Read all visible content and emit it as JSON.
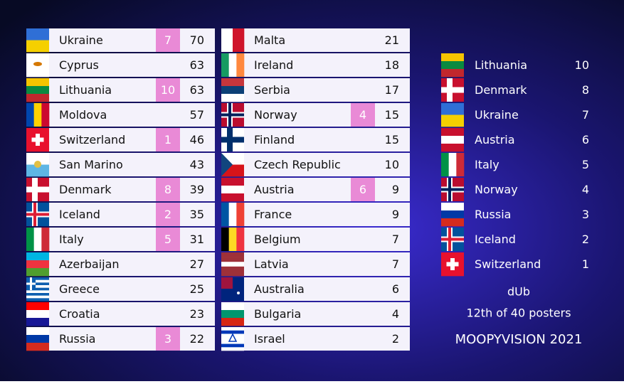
{
  "scoreboard": {
    "columns": [
      [
        {
          "country": "Ukraine",
          "points": 7,
          "total": 70
        },
        {
          "country": "Cyprus",
          "total": 63
        },
        {
          "country": "Lithuania",
          "points": 10,
          "total": 63
        },
        {
          "country": "Moldova",
          "total": 57
        },
        {
          "country": "Switzerland",
          "points": 1,
          "total": 46
        },
        {
          "country": "San Marino",
          "total": 43
        },
        {
          "country": "Denmark",
          "points": 8,
          "total": 39
        },
        {
          "country": "Iceland",
          "points": 2,
          "total": 35
        },
        {
          "country": "Italy",
          "points": 5,
          "total": 31
        },
        {
          "country": "Azerbaijan",
          "total": 27
        },
        {
          "country": "Greece",
          "total": 25
        },
        {
          "country": "Croatia",
          "total": 23
        },
        {
          "country": "Russia",
          "points": 3,
          "total": 22
        }
      ],
      [
        {
          "country": "Malta",
          "total": 21
        },
        {
          "country": "Ireland",
          "total": 18
        },
        {
          "country": "Serbia",
          "total": 17
        },
        {
          "country": "Norway",
          "points": 4,
          "total": 15
        },
        {
          "country": "Finland",
          "total": 15
        },
        {
          "country": "Czech Republic",
          "total": 10
        },
        {
          "country": "Austria",
          "points": 6,
          "total": 9
        },
        {
          "country": "France",
          "total": 9
        },
        {
          "country": "Belgium",
          "total": 7
        },
        {
          "country": "Latvia",
          "total": 7
        },
        {
          "country": "Australia",
          "total": 6
        },
        {
          "country": "Bulgaria",
          "total": 4
        },
        {
          "country": "Israel",
          "total": 2
        }
      ]
    ]
  },
  "voter": {
    "awards": [
      {
        "country": "Lithuania",
        "points": 10
      },
      {
        "country": "Denmark",
        "points": 8
      },
      {
        "country": "Ukraine",
        "points": 7
      },
      {
        "country": "Austria",
        "points": 6
      },
      {
        "country": "Italy",
        "points": 5
      },
      {
        "country": "Norway",
        "points": 4
      },
      {
        "country": "Russia",
        "points": 3
      },
      {
        "country": "Iceland",
        "points": 2
      },
      {
        "country": "Switzerland",
        "points": 1
      }
    ],
    "name": "dUb",
    "rank": "12th of 40 posters",
    "show": "MOOPYVISION 2021"
  }
}
